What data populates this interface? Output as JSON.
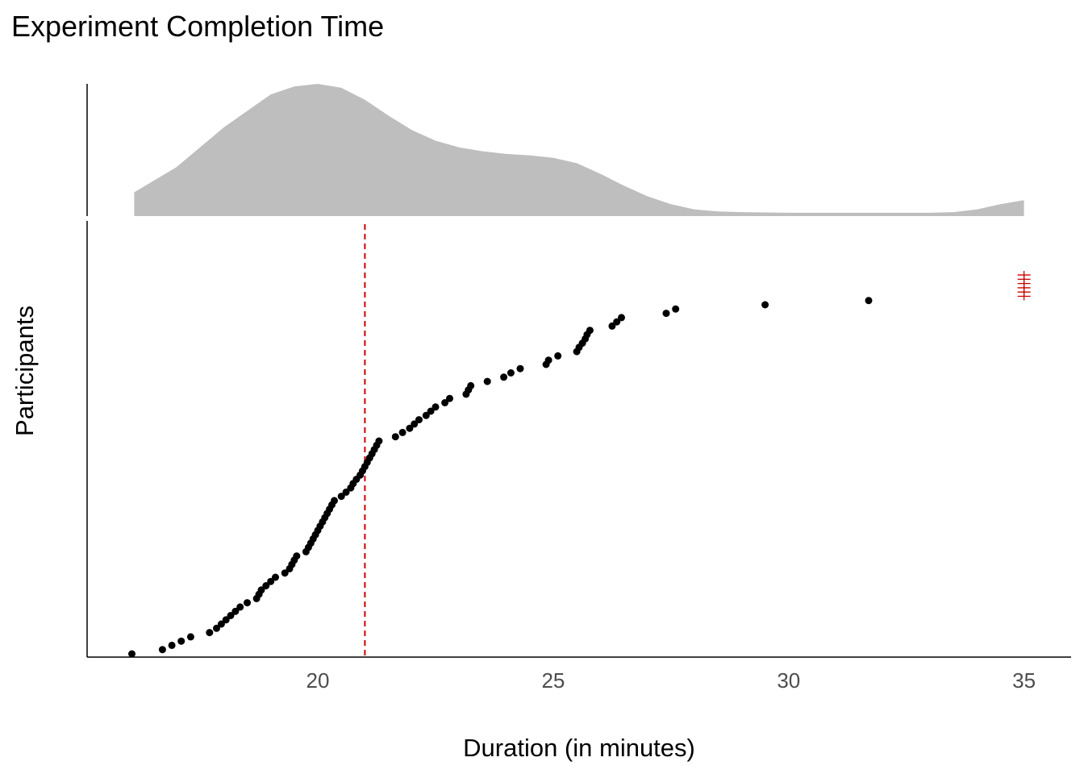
{
  "chart_data": {
    "type": "scatter",
    "title": "Experiment Completion Time",
    "xlabel": "Duration (in minutes)",
    "ylabel": "Participants",
    "xlim": [
      15.1,
      36.0
    ],
    "xticks": [
      20,
      25,
      30,
      35
    ],
    "tick_labels": [
      "20",
      "25",
      "30",
      "35"
    ],
    "reference_line_x": 21.0,
    "reference_line_color": "#cc0000",
    "point_color": "#000000",
    "density_fill": "#bebebe",
    "grid": false,
    "marginal": "density (top)",
    "density": {
      "x": [
        16.1,
        17.0,
        18.0,
        19.0,
        19.5,
        20.0,
        20.5,
        21.0,
        21.5,
        22.0,
        22.5,
        23.0,
        23.5,
        24.0,
        24.5,
        25.0,
        25.5,
        26.0,
        26.5,
        27.0,
        27.5,
        28.0,
        28.5,
        29.0,
        30.0,
        31.0,
        32.0,
        33.0,
        33.5,
        34.0,
        34.5,
        35.0
      ],
      "y": [
        0.18,
        0.37,
        0.67,
        0.92,
        0.98,
        1.0,
        0.97,
        0.88,
        0.76,
        0.65,
        0.57,
        0.52,
        0.49,
        0.47,
        0.46,
        0.44,
        0.4,
        0.32,
        0.23,
        0.15,
        0.09,
        0.05,
        0.035,
        0.03,
        0.025,
        0.025,
        0.025,
        0.025,
        0.03,
        0.05,
        0.09,
        0.12
      ]
    },
    "rank_max": 100,
    "points": [
      {
        "x": 16.05,
        "rank": 0
      },
      {
        "x": 16.7,
        "rank": 1
      },
      {
        "x": 16.9,
        "rank": 2
      },
      {
        "x": 17.1,
        "rank": 3
      },
      {
        "x": 17.3,
        "rank": 4
      },
      {
        "x": 17.7,
        "rank": 5
      },
      {
        "x": 17.85,
        "rank": 6
      },
      {
        "x": 17.95,
        "rank": 7
      },
      {
        "x": 18.05,
        "rank": 8
      },
      {
        "x": 18.15,
        "rank": 9
      },
      {
        "x": 18.25,
        "rank": 10
      },
      {
        "x": 18.35,
        "rank": 11
      },
      {
        "x": 18.5,
        "rank": 12
      },
      {
        "x": 18.7,
        "rank": 13
      },
      {
        "x": 18.75,
        "rank": 14
      },
      {
        "x": 18.8,
        "rank": 15
      },
      {
        "x": 18.9,
        "rank": 16
      },
      {
        "x": 19.0,
        "rank": 17
      },
      {
        "x": 19.1,
        "rank": 18
      },
      {
        "x": 19.3,
        "rank": 19
      },
      {
        "x": 19.4,
        "rank": 20
      },
      {
        "x": 19.45,
        "rank": 21
      },
      {
        "x": 19.5,
        "rank": 22
      },
      {
        "x": 19.55,
        "rank": 23
      },
      {
        "x": 19.75,
        "rank": 24
      },
      {
        "x": 19.8,
        "rank": 25
      },
      {
        "x": 19.85,
        "rank": 26
      },
      {
        "x": 19.9,
        "rank": 27
      },
      {
        "x": 19.95,
        "rank": 28
      },
      {
        "x": 20.0,
        "rank": 29
      },
      {
        "x": 20.05,
        "rank": 30
      },
      {
        "x": 20.1,
        "rank": 31
      },
      {
        "x": 20.15,
        "rank": 32
      },
      {
        "x": 20.2,
        "rank": 33
      },
      {
        "x": 20.25,
        "rank": 34
      },
      {
        "x": 20.3,
        "rank": 35
      },
      {
        "x": 20.35,
        "rank": 36
      },
      {
        "x": 20.5,
        "rank": 37
      },
      {
        "x": 20.6,
        "rank": 38
      },
      {
        "x": 20.7,
        "rank": 39
      },
      {
        "x": 20.75,
        "rank": 40
      },
      {
        "x": 20.82,
        "rank": 41
      },
      {
        "x": 20.9,
        "rank": 42
      },
      {
        "x": 20.95,
        "rank": 43
      },
      {
        "x": 21.0,
        "rank": 44
      },
      {
        "x": 21.05,
        "rank": 45
      },
      {
        "x": 21.1,
        "rank": 46
      },
      {
        "x": 21.15,
        "rank": 47
      },
      {
        "x": 21.2,
        "rank": 48
      },
      {
        "x": 21.25,
        "rank": 49
      },
      {
        "x": 21.3,
        "rank": 50
      },
      {
        "x": 21.65,
        "rank": 51
      },
      {
        "x": 21.8,
        "rank": 52
      },
      {
        "x": 21.95,
        "rank": 53
      },
      {
        "x": 22.05,
        "rank": 54
      },
      {
        "x": 22.15,
        "rank": 55
      },
      {
        "x": 22.3,
        "rank": 56
      },
      {
        "x": 22.4,
        "rank": 57
      },
      {
        "x": 22.5,
        "rank": 58
      },
      {
        "x": 22.7,
        "rank": 59
      },
      {
        "x": 22.8,
        "rank": 60
      },
      {
        "x": 23.15,
        "rank": 61
      },
      {
        "x": 23.2,
        "rank": 62
      },
      {
        "x": 23.25,
        "rank": 63
      },
      {
        "x": 23.6,
        "rank": 64
      },
      {
        "x": 23.95,
        "rank": 65
      },
      {
        "x": 24.1,
        "rank": 66
      },
      {
        "x": 24.3,
        "rank": 67
      },
      {
        "x": 24.85,
        "rank": 68
      },
      {
        "x": 24.9,
        "rank": 69
      },
      {
        "x": 25.1,
        "rank": 70
      },
      {
        "x": 25.5,
        "rank": 71
      },
      {
        "x": 25.55,
        "rank": 72
      },
      {
        "x": 25.62,
        "rank": 73
      },
      {
        "x": 25.68,
        "rank": 74
      },
      {
        "x": 25.72,
        "rank": 75
      },
      {
        "x": 25.78,
        "rank": 76
      },
      {
        "x": 26.25,
        "rank": 77
      },
      {
        "x": 26.35,
        "rank": 78
      },
      {
        "x": 26.45,
        "rank": 79
      },
      {
        "x": 27.4,
        "rank": 80
      },
      {
        "x": 27.6,
        "rank": 81
      },
      {
        "x": 29.5,
        "rank": 82
      },
      {
        "x": 31.7,
        "rank": 83
      }
    ],
    "capped_at_x": 35.0,
    "capped_ranks": [
      84,
      85,
      86,
      87,
      88,
      89
    ]
  }
}
